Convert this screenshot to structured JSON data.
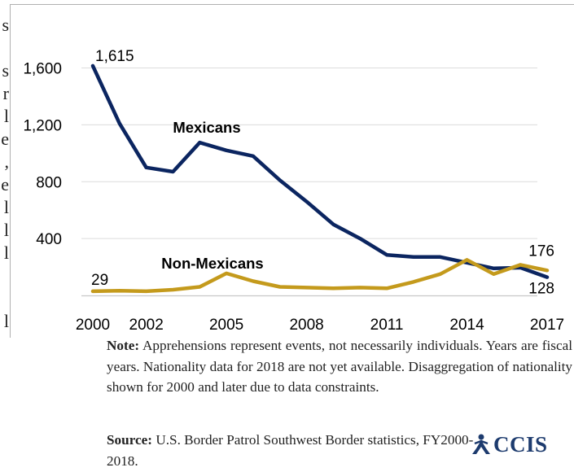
{
  "chart_data": {
    "type": "line",
    "title": "",
    "xlabel": "",
    "ylabel": "",
    "x": [
      2000,
      2001,
      2002,
      2003,
      2004,
      2005,
      2006,
      2007,
      2008,
      2009,
      2010,
      2011,
      2012,
      2013,
      2014,
      2015,
      2016,
      2017
    ],
    "x_tick_labels": [
      "2000",
      "2002",
      "2005",
      "2008",
      "2011",
      "2014",
      "2017"
    ],
    "x_tick_values": [
      2000,
      2002,
      2005,
      2008,
      2011,
      2014,
      2017
    ],
    "y_tick_labels": [
      "400",
      "800",
      "1,200",
      "1,600"
    ],
    "y_tick_values": [
      400,
      800,
      1200,
      1600
    ],
    "ylim": [
      0,
      1800
    ],
    "grid": true,
    "series": [
      {
        "name": "Mexicans",
        "color": "#0b2560",
        "values": [
          1615,
          1210,
          900,
          870,
          1075,
          1020,
          980,
          810,
          660,
          500,
          400,
          285,
          270,
          270,
          230,
          190,
          195,
          128
        ]
      },
      {
        "name": "Non-Mexicans",
        "color": "#c49a1c",
        "values": [
          29,
          33,
          29,
          40,
          60,
          155,
          100,
          60,
          55,
          50,
          55,
          50,
          95,
          150,
          250,
          150,
          215,
          176
        ]
      }
    ],
    "annotations": {
      "mexicans_start": "1,615",
      "mexicans_end": "128",
      "non_mexicans_start": "29",
      "non_mexicans_end": "176"
    }
  },
  "left_fragment": [
    "s",
    "",
    "s",
    "r",
    "l",
    "e",
    ",",
    "e",
    "l",
    "l",
    "l",
    "",
    "",
    "l"
  ],
  "notes": {
    "note_label": "Note:",
    "note_text": " Apprehensions represent events, not necessarily individuals. Years are fiscal years. Nationality data for 2018 are not yet available. Disaggregation of nationality shown for 2000 and later due to data constraints.",
    "source_label": "Source:",
    "source_text": " U.S. Border Patrol Southwest Border statistics, FY2000-2018."
  },
  "logo": {
    "text": "CCIS",
    "icon": "figure-logo-icon"
  }
}
